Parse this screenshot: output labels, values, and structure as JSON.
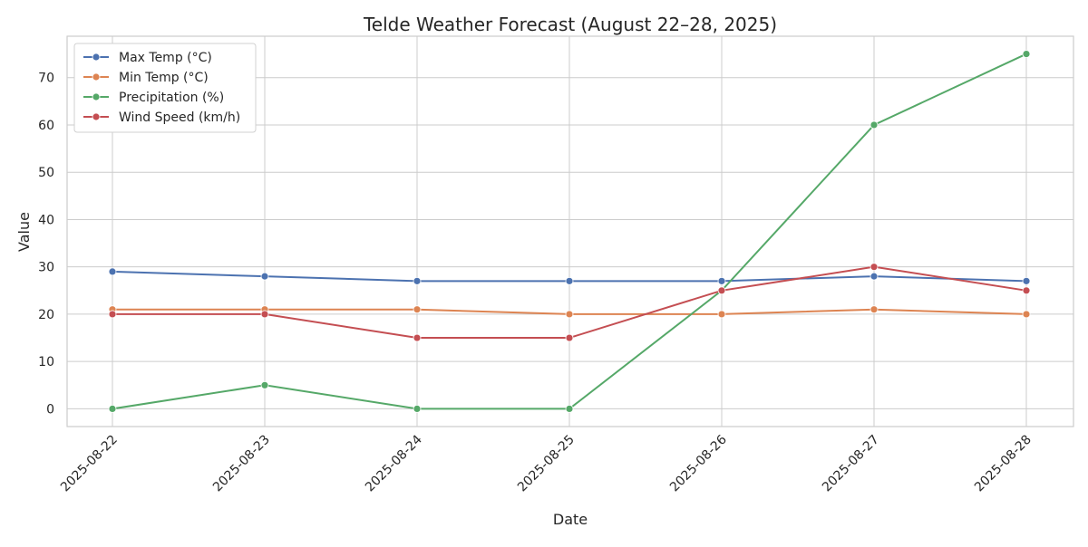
{
  "chart_data": {
    "type": "line",
    "title": "Telde Weather Forecast (August 22–28, 2025)",
    "xlabel": "Date",
    "ylabel": "Value",
    "x": [
      "2025-08-22",
      "2025-08-23",
      "2025-08-24",
      "2025-08-25",
      "2025-08-26",
      "2025-08-27",
      "2025-08-28"
    ],
    "ylim": [
      -3.75,
      78.75
    ],
    "yticks": [
      0,
      10,
      20,
      30,
      40,
      50,
      60,
      70
    ],
    "grid": true,
    "legend_position": "top-left",
    "series": [
      {
        "name": "Max Temp (°C)",
        "color": "#4c72b0",
        "values": [
          29,
          28,
          27,
          27,
          27,
          28,
          27
        ]
      },
      {
        "name": "Min Temp (°C)",
        "color": "#dd8452",
        "values": [
          21,
          21,
          21,
          20,
          20,
          21,
          20
        ]
      },
      {
        "name": "Precipitation (%)",
        "color": "#55a868",
        "values": [
          0,
          5,
          0,
          0,
          25,
          60,
          75
        ]
      },
      {
        "name": "Wind Speed (km/h)",
        "color": "#c44e52",
        "values": [
          20,
          20,
          15,
          15,
          25,
          30,
          25
        ]
      }
    ]
  }
}
